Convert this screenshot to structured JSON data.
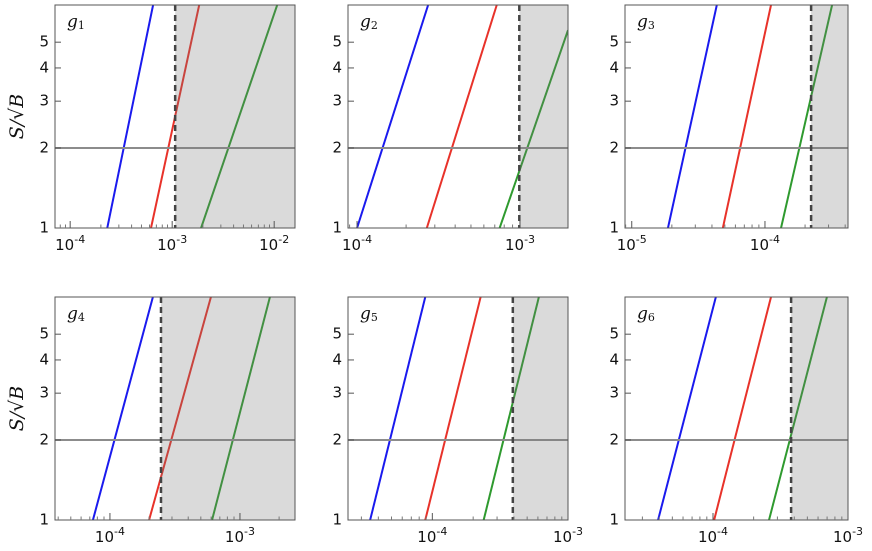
{
  "chart_data": [
    {
      "type": "line",
      "title": "g1",
      "ylabel": "S/√B",
      "xscale": "log",
      "yscale": "log",
      "xlim": [
        7.1e-05,
        0.016
      ],
      "ylim": [
        1,
        6.9
      ],
      "xticks": [
        {
          "value": 0.0001,
          "label": "10-4"
        },
        {
          "value": 0.001,
          "label": "10-3"
        },
        {
          "value": 0.01,
          "label": "10-2"
        }
      ],
      "yticks": [
        1,
        2,
        3,
        4,
        5
      ],
      "hline": 2,
      "hline_color": "#8c8c8c",
      "threshold": 0.00107,
      "threshold_color": "#444444",
      "shade_color": "#777777",
      "series": [
        {
          "color": "#1a1aee",
          "x": [
            0.000231,
            0.00065
          ],
          "values": [
            1,
            6.9
          ]
        },
        {
          "color": "#e8322a",
          "x": [
            0.00062,
            0.00184
          ],
          "values": [
            1,
            6.9
          ]
        },
        {
          "color": "#2f9a2f",
          "x": [
            0.00192,
            0.0107
          ],
          "values": [
            1,
            6.9
          ]
        }
      ]
    },
    {
      "type": "line",
      "title": "g2",
      "xscale": "log",
      "yscale": "log",
      "xlim": [
        8.8e-05,
        0.00197
      ],
      "ylim": [
        1,
        6.9
      ],
      "xticks": [
        {
          "value": 0.0001,
          "label": "10-4"
        },
        {
          "value": 0.001,
          "label": "10-3"
        }
      ],
      "yticks": [
        1,
        2,
        3,
        4,
        5
      ],
      "hline": 2,
      "hline_color": "#8c8c8c",
      "threshold": 0.00099,
      "threshold_color": "#444444",
      "shade_color": "#777777",
      "series": [
        {
          "color": "#1a1aee",
          "x": [
            0.0001,
            0.000273
          ],
          "values": [
            1,
            6.9
          ]
        },
        {
          "color": "#e8322a",
          "x": [
            0.000268,
            0.00072
          ],
          "values": [
            1,
            6.9
          ]
        },
        {
          "color": "#2f9a2f",
          "x": [
            0.00075,
            0.00197
          ],
          "values": [
            1,
            5.55
          ]
        }
      ]
    },
    {
      "type": "line",
      "title": "g3",
      "xscale": "log",
      "yscale": "log",
      "xlim": [
        8.9e-06,
        0.00042
      ],
      "ylim": [
        1,
        6.9
      ],
      "xticks": [
        {
          "value": 1e-05,
          "label": "10-5"
        },
        {
          "value": 0.0001,
          "label": "10-4"
        }
      ],
      "yticks": [
        1,
        2,
        3,
        4,
        5
      ],
      "hline": 2,
      "hline_color": "#8c8c8c",
      "threshold": 0.000222,
      "threshold_color": "#444444",
      "shade_color": "#777777",
      "series": [
        {
          "color": "#1a1aee",
          "x": [
            1.87e-05,
            4.35e-05
          ],
          "values": [
            1,
            6.9
          ]
        },
        {
          "color": "#e8322a",
          "x": [
            4.83e-05,
            0.000111
          ],
          "values": [
            1,
            6.9
          ]
        },
        {
          "color": "#2f9a2f",
          "x": [
            0.000132,
            0.000319
          ],
          "values": [
            1,
            6.9
          ]
        }
      ]
    },
    {
      "type": "line",
      "title": "g4",
      "ylabel": "S/√B",
      "xscale": "log",
      "yscale": "log",
      "xlim": [
        3.78e-05,
        0.00265
      ],
      "ylim": [
        1,
        6.9
      ],
      "xticks": [
        {
          "value": 0.0001,
          "label": "10-4"
        },
        {
          "value": 0.001,
          "label": "10-3"
        }
      ],
      "yticks": [
        1,
        2,
        3,
        4,
        5
      ],
      "hline": 2,
      "hline_color": "#8c8c8c",
      "threshold": 0.000247,
      "threshold_color": "#444444",
      "shade_color": "#777777",
      "series": [
        {
          "color": "#1a1aee",
          "x": [
            7.4e-05,
            0.000214
          ],
          "values": [
            1,
            6.9
          ]
        },
        {
          "color": "#e8322a",
          "x": [
            0.0002,
            0.000598
          ],
          "values": [
            1,
            6.9
          ]
        },
        {
          "color": "#2f9a2f",
          "x": [
            0.00061,
            0.0017
          ],
          "values": [
            1,
            6.9
          ]
        }
      ]
    },
    {
      "type": "line",
      "title": "g5",
      "xscale": "log",
      "yscale": "log",
      "xlim": [
        2.39e-05,
        0.001
      ],
      "ylim": [
        1,
        6.9
      ],
      "xticks": [
        {
          "value": 0.0001,
          "label": "10-4"
        },
        {
          "value": 0.001,
          "label": "10-3"
        }
      ],
      "yticks": [
        1,
        2,
        3,
        4,
        5
      ],
      "hline": 2,
      "hline_color": "#8c8c8c",
      "threshold": 0.000392,
      "threshold_color": "#444444",
      "shade_color": "#777777",
      "series": [
        {
          "color": "#1a1aee",
          "x": [
            3.48e-05,
            8.87e-05
          ],
          "values": [
            1,
            6.9
          ]
        },
        {
          "color": "#e8322a",
          "x": [
            8.87e-05,
            0.000227
          ],
          "values": [
            1,
            6.9
          ]
        },
        {
          "color": "#2f9a2f",
          "x": [
            0.000239,
            0.00061
          ],
          "values": [
            1,
            6.9
          ]
        }
      ]
    },
    {
      "type": "line",
      "title": "g6",
      "xscale": "log",
      "yscale": "log",
      "xlim": [
        2.23e-05,
        0.001
      ],
      "ylim": [
        1,
        6.9
      ],
      "xticks": [
        {
          "value": 0.0001,
          "label": "10-4"
        },
        {
          "value": 0.001,
          "label": "10-3"
        }
      ],
      "yticks": [
        1,
        2,
        3,
        4,
        5
      ],
      "hline": 2,
      "hline_color": "#8c8c8c",
      "threshold": 0.000379,
      "threshold_color": "#444444",
      "shade_color": "#777777",
      "series": [
        {
          "color": "#1a1aee",
          "x": [
            3.92e-05,
            0.000105
          ],
          "values": [
            1,
            6.9
          ]
        },
        {
          "color": "#e8322a",
          "x": [
            0.000102,
            0.000269
          ],
          "values": [
            1,
            6.9
          ]
        },
        {
          "color": "#2f9a2f",
          "x": [
            0.00026,
            0.000698
          ],
          "values": [
            1,
            6.9
          ]
        }
      ]
    }
  ]
}
